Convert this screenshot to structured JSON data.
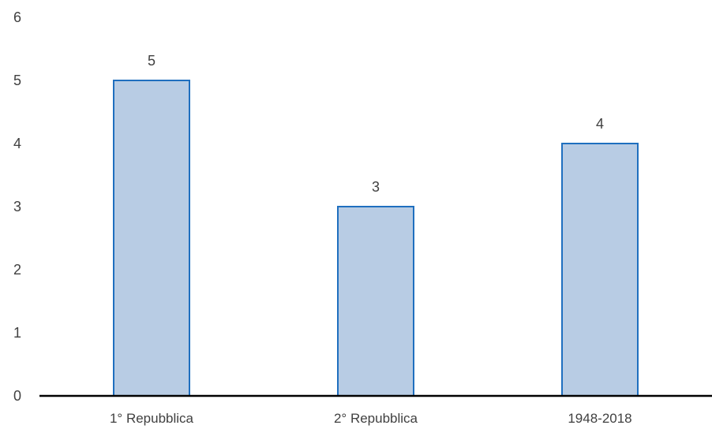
{
  "chart_data": {
    "type": "bar",
    "title": "",
    "xlabel": "",
    "ylabel": "",
    "categories": [
      "1° Repubblica",
      "2° Repubblica",
      "1948-2018"
    ],
    "values": [
      5,
      3,
      4
    ],
    "data_labels": [
      "5",
      "3",
      "4"
    ],
    "ylim": [
      0,
      6
    ],
    "yticks": [
      "0",
      "1",
      "2",
      "3",
      "4",
      "5",
      "6"
    ],
    "grid": false,
    "legend": "none",
    "colors": {
      "bar_fill": "#b8cce4",
      "bar_stroke": "#1f6fbf",
      "axis": "#000000",
      "text": "#404040"
    }
  }
}
